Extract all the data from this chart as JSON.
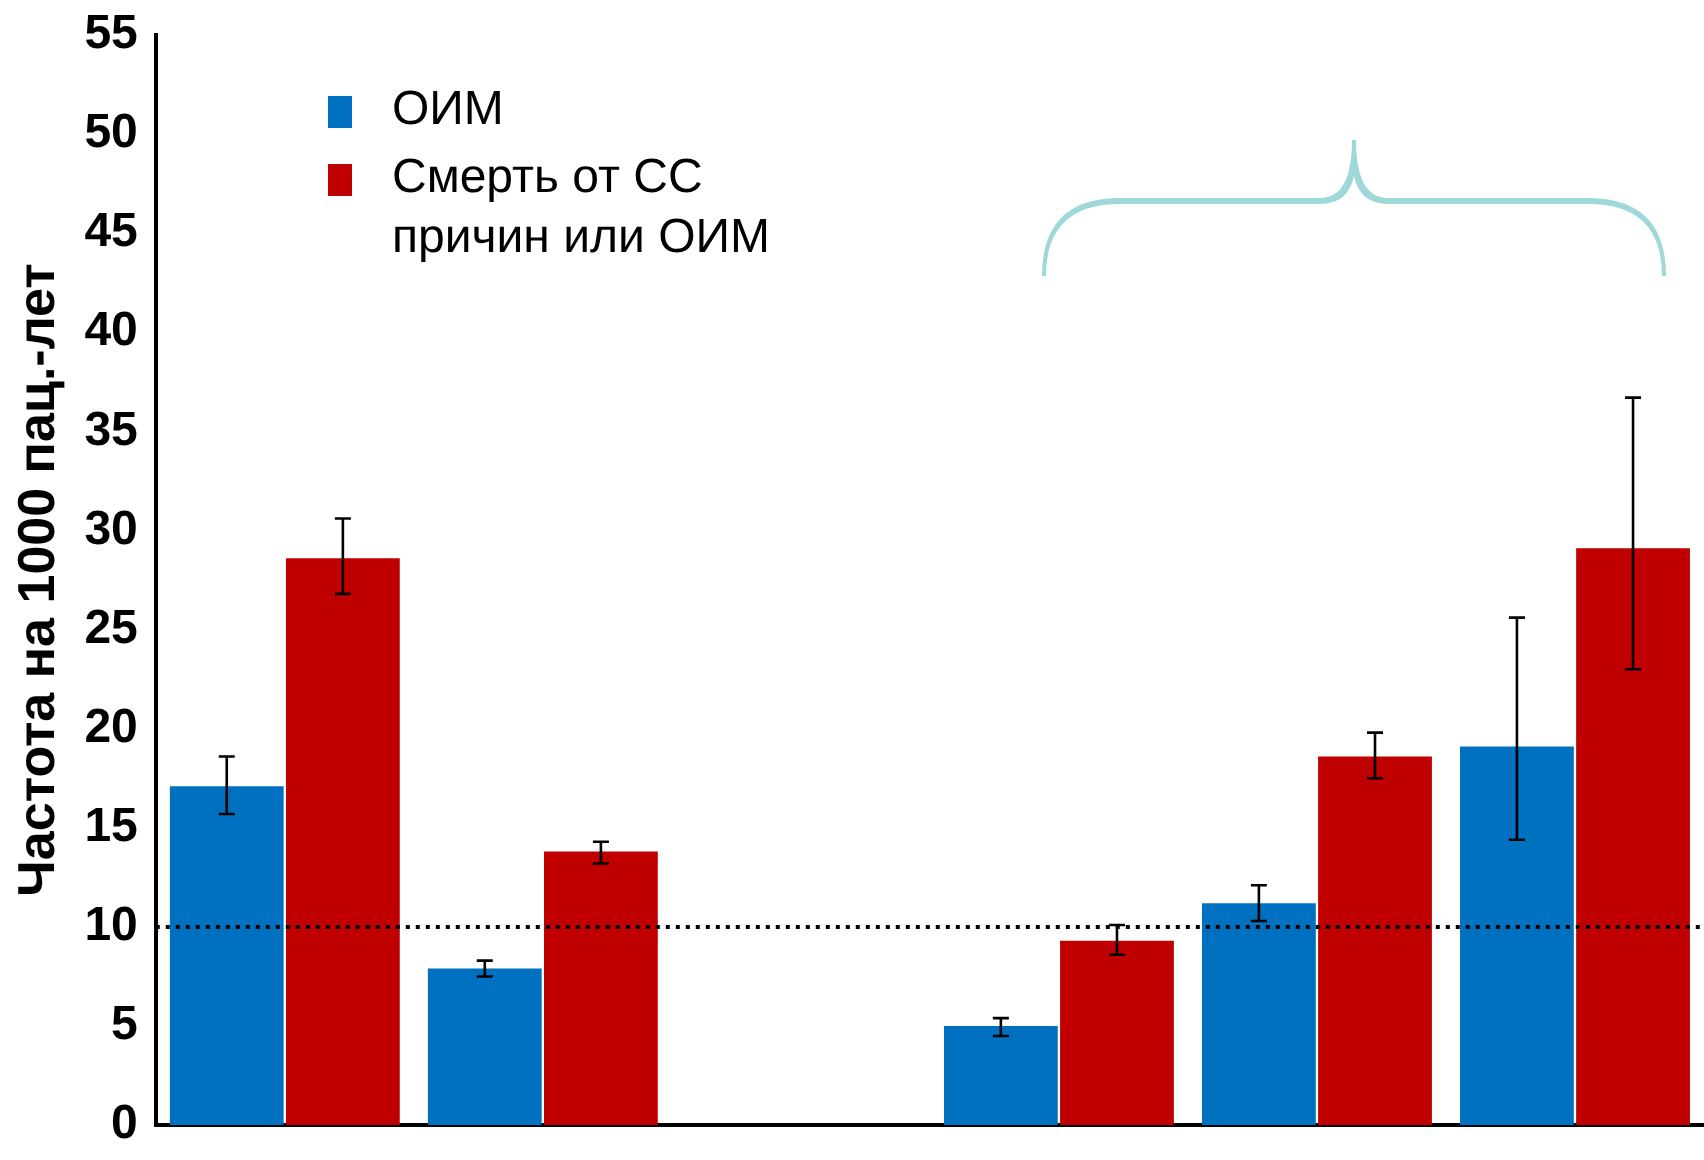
{
  "chart_data": {
    "type": "bar",
    "ylabel": "Частота на 1000 пац.-лет",
    "categories": [
      null,
      null,
      null,
      null,
      null,
      null
    ],
    "series": [
      {
        "name": "ОИМ",
        "color": "#0070c0",
        "values": [
          17.1,
          7.9,
          null,
          5.0,
          11.2,
          19.1
        ],
        "errors": [
          [
            15.7,
            18.6
          ],
          [
            7.5,
            8.3
          ],
          null,
          [
            4.5,
            5.4
          ],
          [
            10.3,
            12.1
          ],
          [
            14.4,
            25.6
          ]
        ]
      },
      {
        "name": "Смерть от СС причин или ОИМ",
        "color": "#c00000",
        "values": [
          28.6,
          13.8,
          null,
          9.3,
          18.6,
          29.1
        ],
        "errors": [
          [
            26.8,
            30.6
          ],
          [
            13.2,
            14.3
          ],
          null,
          [
            8.6,
            10.1
          ],
          [
            17.5,
            19.8
          ],
          [
            23.0,
            36.7
          ]
        ]
      }
    ],
    "ylim": [
      0,
      55
    ],
    "yticks": [
      0,
      5,
      10,
      15,
      20,
      25,
      30,
      35,
      40,
      45,
      50,
      55
    ],
    "ref_lines": [
      {
        "axis": "y",
        "value": 10,
        "line_style": "dotted",
        "color": "#000000"
      }
    ],
    "grid": false,
    "legend": "top left",
    "tick_labels": "y"
  }
}
